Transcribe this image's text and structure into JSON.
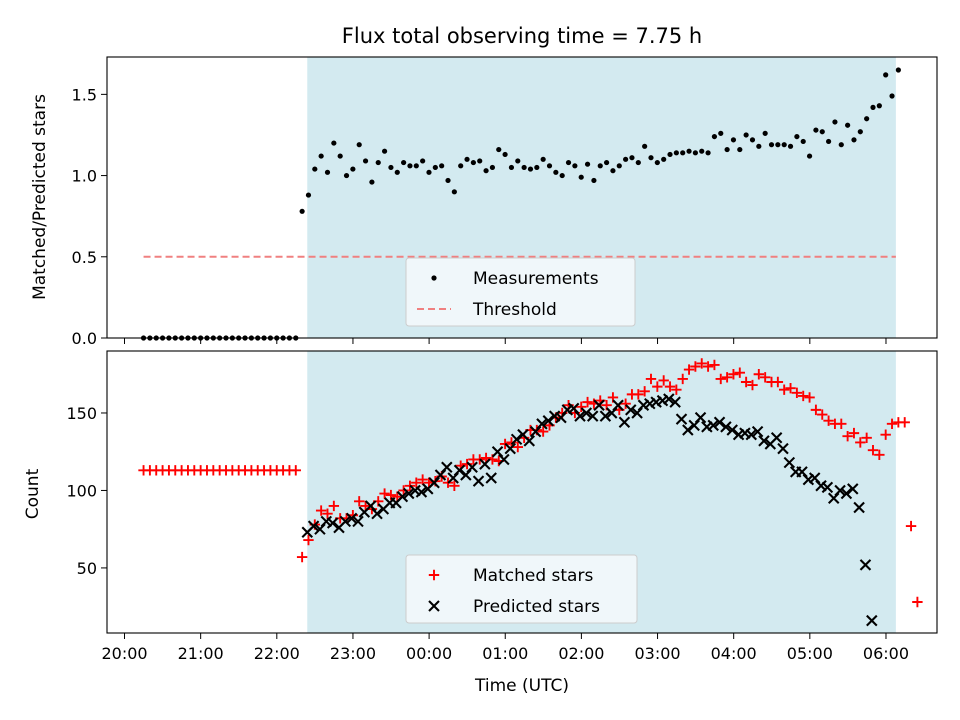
{
  "chart_data": [
    {
      "type": "scatter",
      "title": "Flux total observing time = 7.75 h",
      "xlabel": "",
      "ylabel": "Matched/Predicted stars",
      "xlim_hours": [
        19.77,
        30.67
      ],
      "ylim": [
        0,
        1.73
      ],
      "yticks": [
        0.0,
        0.5,
        1.0,
        1.5
      ],
      "ytick_labels": [
        "0.0",
        "0.5",
        "1.0",
        "1.5"
      ],
      "shaded_span_hours": [
        22.4,
        30.13
      ],
      "threshold": 0.5,
      "threshold_span_hours": [
        20.25,
        30.13
      ],
      "legend": {
        "position": "lower-center",
        "entries": [
          "Measurements",
          "Threshold"
        ]
      },
      "series": [
        {
          "name": "Measurements",
          "style": "dot",
          "color": "#000000",
          "x_start_hours": 20.25,
          "x_step_hours": 0.0833,
          "values": [
            0,
            0,
            0,
            0,
            0,
            0,
            0,
            0,
            0,
            0,
            0,
            0,
            0,
            0,
            0,
            0,
            0,
            0,
            0,
            0,
            0,
            0,
            0,
            0,
            0,
            0.78,
            0.88,
            1.04,
            1.12,
            1.02,
            1.2,
            1.12,
            1.0,
            1.04,
            1.19,
            1.09,
            0.96,
            1.08,
            1.15,
            1.05,
            1.02,
            1.08,
            1.06,
            1.06,
            1.09,
            1.02,
            1.05,
            1.06,
            0.97,
            0.9,
            1.06,
            1.1,
            1.08,
            1.09,
            1.03,
            1.05,
            1.16,
            1.13,
            1.05,
            1.09,
            1.05,
            1.04,
            1.05,
            1.1,
            1.06,
            1.02,
            1.0,
            1.08,
            1.06,
            0.99,
            1.07,
            0.97,
            1.06,
            1.08,
            1.03,
            1.06,
            1.1,
            1.11,
            1.08,
            1.18,
            1.11,
            1.08,
            1.1,
            1.13,
            1.14,
            1.14,
            1.15,
            1.14,
            1.15,
            1.14,
            1.24,
            1.26,
            1.16,
            1.22,
            1.16,
            1.25,
            1.22,
            1.18,
            1.26,
            1.19,
            1.19,
            1.19,
            1.18,
            1.24,
            1.21,
            1.12,
            1.28,
            1.27,
            1.21,
            1.33,
            1.19,
            1.31,
            1.22,
            1.27,
            1.35,
            1.42,
            1.43,
            1.62,
            1.49,
            1.65
          ]
        },
        {
          "name": "Threshold",
          "style": "dashed-line",
          "color": "#f08080"
        }
      ]
    },
    {
      "type": "scatter",
      "title": "",
      "xlabel": "Time (UTC)",
      "ylabel": "Count",
      "xlim_hours": [
        19.77,
        30.67
      ],
      "ylim": [
        8,
        190
      ],
      "yticks": [
        50,
        100,
        150
      ],
      "ytick_labels": [
        "50",
        "100",
        "150"
      ],
      "xticks_hours": [
        20,
        21,
        22,
        23,
        24,
        25,
        26,
        27,
        28,
        29,
        30
      ],
      "xtick_labels": [
        "20:00",
        "21:00",
        "22:00",
        "23:00",
        "00:00",
        "01:00",
        "02:00",
        "03:00",
        "04:00",
        "05:00",
        "06:00"
      ],
      "shaded_span_hours": [
        22.4,
        30.13
      ],
      "legend": {
        "position": "lower-center",
        "entries": [
          "Matched stars",
          "Predicted stars"
        ]
      },
      "series": [
        {
          "name": "Matched stars",
          "style": "plus",
          "color": "#ff0000",
          "x_start_hours": 20.25,
          "x_step_hours": 0.0833,
          "values": [
            113,
            113,
            113,
            113,
            113,
            113,
            113,
            113,
            113,
            113,
            113,
            113,
            113,
            113,
            113,
            113,
            113,
            113,
            113,
            113,
            113,
            113,
            113,
            113,
            113,
            57,
            68,
            78,
            87,
            85,
            90,
            82,
            82,
            84,
            93,
            90,
            88,
            93,
            98,
            97,
            96,
            100,
            103,
            105,
            107,
            105,
            106,
            109,
            105,
            103,
            116,
            117,
            120,
            120,
            121,
            120,
            119,
            130,
            131,
            128,
            134,
            139,
            139,
            138,
            142,
            147,
            150,
            155,
            150,
            154,
            157,
            156,
            158,
            155,
            160,
            152,
            156,
            162,
            162,
            164,
            172,
            167,
            171,
            167,
            165,
            172,
            178,
            180,
            182,
            180,
            181,
            172,
            173,
            175,
            176,
            170,
            168,
            175,
            173,
            170,
            170,
            165,
            166,
            163,
            161,
            160,
            152,
            149,
            145,
            143,
            143,
            135,
            137,
            131,
            134,
            126,
            123,
            136,
            143,
            144,
            144,
            77,
            28
          ]
        },
        {
          "name": "Predicted stars",
          "style": "x",
          "color": "#000000",
          "x_start_hours": 22.4,
          "x_step_hours": 0.0833,
          "values": [
            73,
            77,
            75,
            80,
            79,
            76,
            80,
            82,
            80,
            86,
            90,
            85,
            88,
            92,
            92,
            96,
            98,
            100,
            99,
            101,
            105,
            110,
            115,
            108,
            113,
            110,
            115,
            106,
            117,
            108,
            125,
            120,
            127,
            133,
            136,
            132,
            138,
            143,
            145,
            148,
            147,
            152,
            153,
            148,
            150,
            148,
            155,
            148,
            150,
            155,
            144,
            152,
            150,
            155,
            156,
            157,
            158,
            159,
            157,
            146,
            139,
            142,
            147,
            141,
            142,
            144,
            141,
            139,
            136,
            137,
            136,
            138,
            132,
            130,
            134,
            127,
            118,
            112,
            112,
            107,
            108,
            103,
            102,
            95,
            100,
            98,
            101,
            89,
            52,
            16
          ]
        }
      ]
    }
  ]
}
